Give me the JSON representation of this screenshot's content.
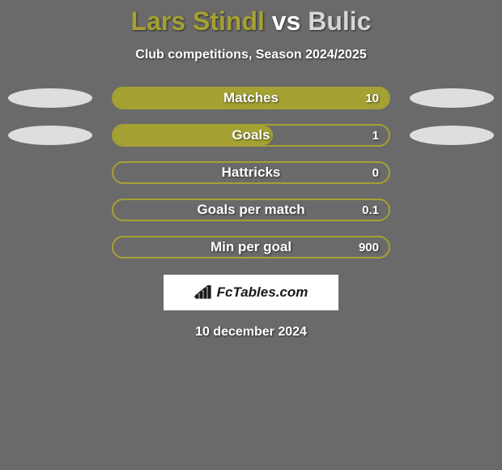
{
  "background_color": "#6a6a6a",
  "title": {
    "player1": "Lars Stindl",
    "vs": " vs ",
    "player2": "Bulic",
    "player1_color": "#a5a133",
    "vs_color": "#ffffff",
    "player2_color": "#d6d6d6"
  },
  "subtitle": {
    "text": "Club competitions, Season 2024/2025",
    "color": "#ffffff"
  },
  "bar_style": {
    "border_color": "#a5a133",
    "fill_color": "#a5a133",
    "label_color": "#ffffff",
    "value_color": "#ffffff"
  },
  "ellipse_colors": {
    "left": "#dedede",
    "right": "#dedede"
  },
  "stats": [
    {
      "label": "Matches",
      "value": "10",
      "fill_pct": 100,
      "left_ellipse": true,
      "right_ellipse": true
    },
    {
      "label": "Goals",
      "value": "1",
      "fill_pct": 58,
      "left_ellipse": true,
      "right_ellipse": true
    },
    {
      "label": "Hattricks",
      "value": "0",
      "fill_pct": 0,
      "left_ellipse": false,
      "right_ellipse": false
    },
    {
      "label": "Goals per match",
      "value": "0.1",
      "fill_pct": 0,
      "left_ellipse": false,
      "right_ellipse": false
    },
    {
      "label": "Min per goal",
      "value": "900",
      "fill_pct": 0,
      "left_ellipse": false,
      "right_ellipse": false
    }
  ],
  "brand": {
    "box_bg": "#ffffff",
    "text": "FcTables.com",
    "text_color": "#1a1a1a",
    "icon_color": "#1a1a1a"
  },
  "date": {
    "text": "10 december 2024",
    "color": "#ffffff"
  }
}
